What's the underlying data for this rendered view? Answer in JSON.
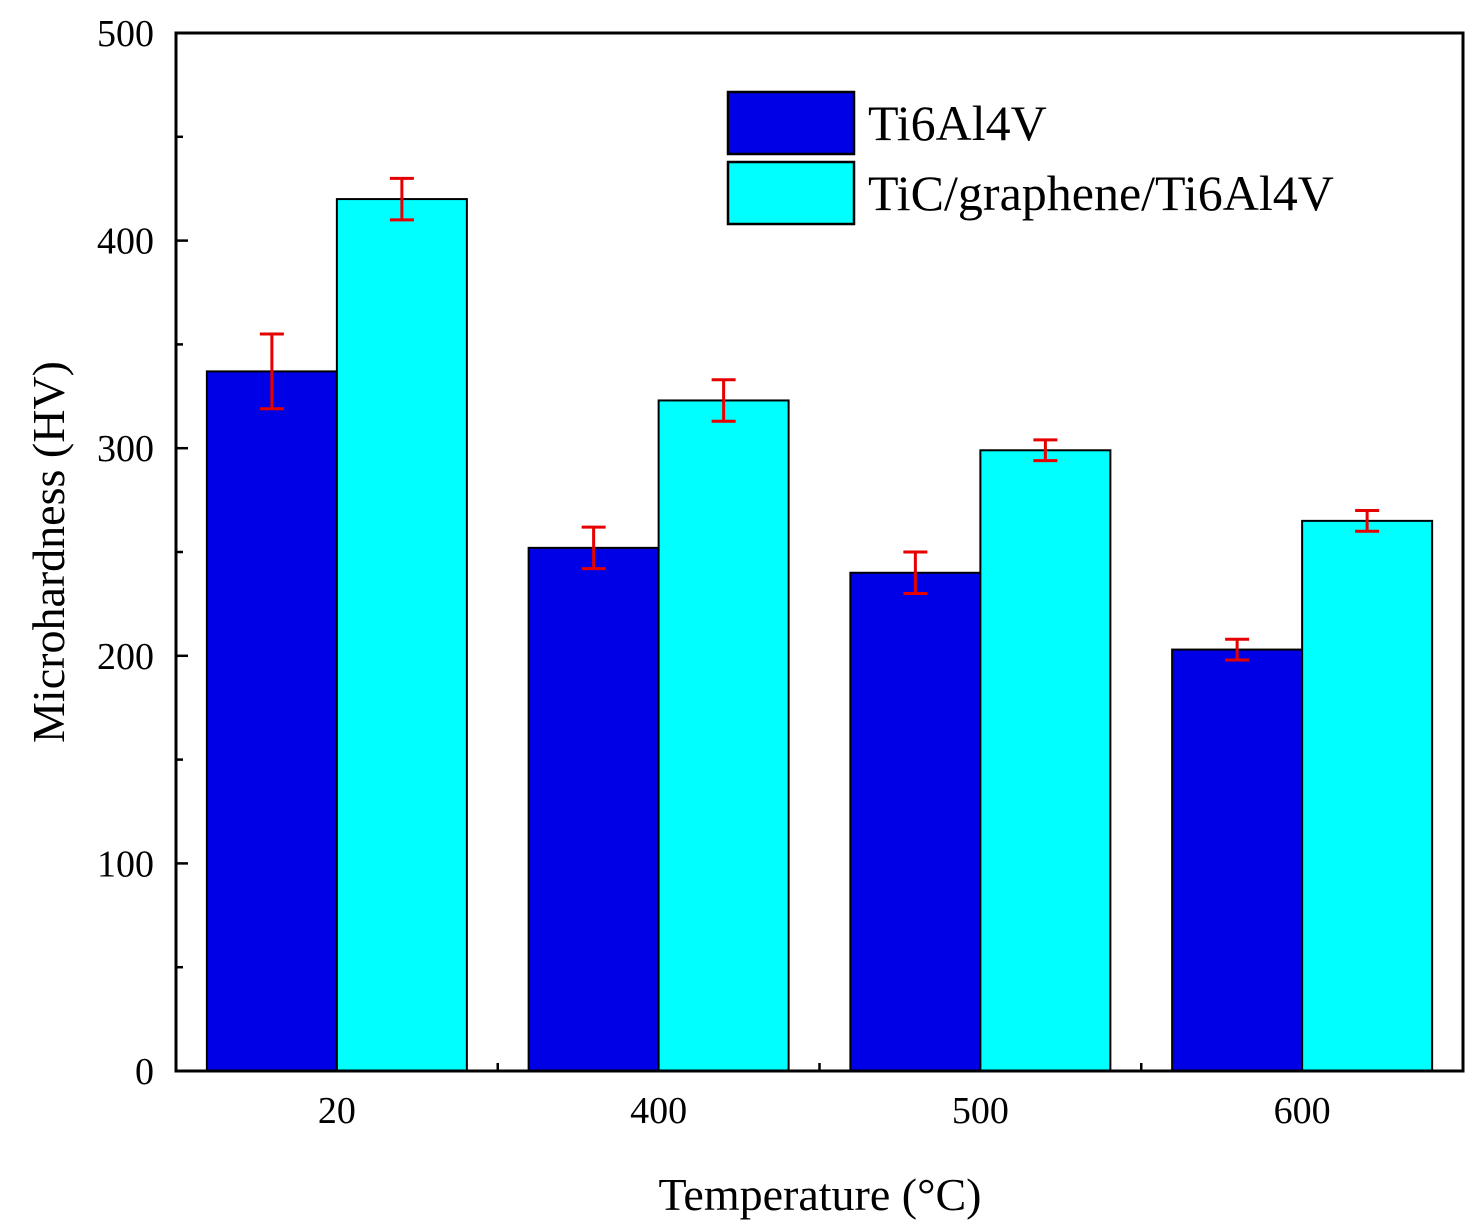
{
  "chart_data": {
    "type": "bar",
    "title": "",
    "xlabel": "Temperature (°C)",
    "ylabel": "Microhardness (HV)",
    "categories": [
      "20",
      "400",
      "500",
      "600"
    ],
    "ylim": [
      0,
      500
    ],
    "yticks": [
      "0",
      "100",
      "200",
      "300",
      "400",
      "500"
    ],
    "legend_position": "top-right",
    "series": [
      {
        "name": "Ti6Al4V",
        "color": "#0000e6",
        "values": [
          337,
          252,
          240,
          203
        ],
        "errors": [
          18,
          10,
          10,
          5
        ]
      },
      {
        "name": "TiC/graphene/Ti6Al4V",
        "color": "#00ffff",
        "values": [
          420,
          323,
          299,
          265
        ],
        "errors": [
          10,
          10,
          5,
          5
        ]
      }
    ],
    "error_bar_color": "#e60000"
  }
}
